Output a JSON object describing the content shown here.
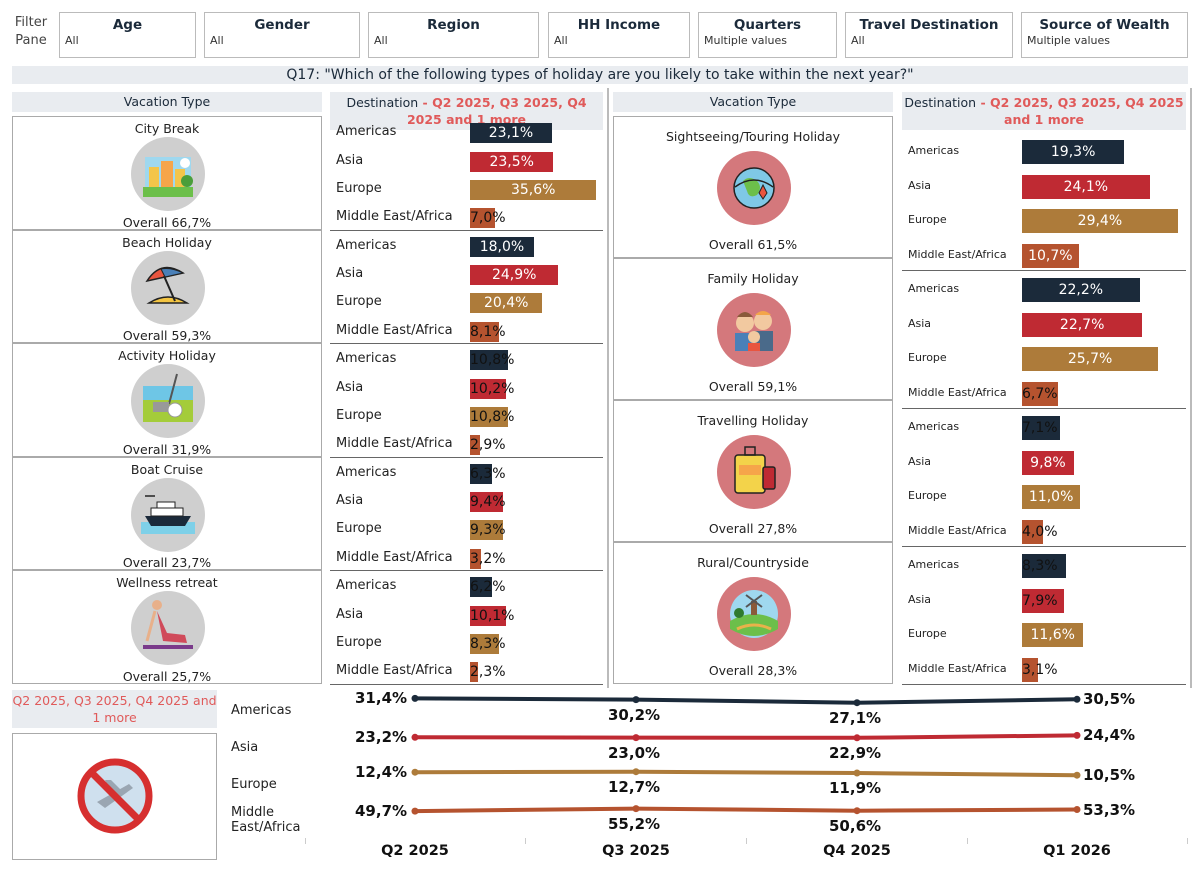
{
  "filters": {
    "pane_label": "Filter Pane",
    "items": [
      {
        "title": "Age",
        "value": "All"
      },
      {
        "title": "Gender",
        "value": "All"
      },
      {
        "title": "Region",
        "value": "All"
      },
      {
        "title": "HH Income",
        "value": "All"
      },
      {
        "title": "Quarters",
        "value": "Multiple values"
      },
      {
        "title": "Travel Destination",
        "value": "All"
      },
      {
        "title": "Source of Wealth",
        "value": "Multiple values"
      }
    ]
  },
  "question": "Q17: \"Which of the following types of holiday are you likely to take within the next year?\"",
  "headers": {
    "vacation_type": "Vacation Type",
    "destination_prefix": "Destination",
    "destination_suffix": " - Q2 2025, Q3 2025, Q4 2025 and 1 more",
    "period_label": "Q2 2025, Q3 2025, Q4 2025 and 1 more"
  },
  "colors": {
    "Americas": "#1b2a3a",
    "Asia": "#bf2a33",
    "Europe": "#ad7b3a",
    "Middle East/Africa": "#b5532f",
    "icon_grey": "#cfcfcf",
    "icon_pink": "#d4787c"
  },
  "regions": [
    "Americas",
    "Asia",
    "Europe",
    "Middle East/Africa"
  ],
  "left_types": [
    {
      "name": "City Break",
      "overall": "Overall 66,7%",
      "icon": "city-icon",
      "values": [
        23.1,
        23.5,
        35.6,
        7.0
      ],
      "labels": [
        "23,1%",
        "23,5%",
        "35,6%",
        "7,0%"
      ]
    },
    {
      "name": "Beach Holiday",
      "overall": "Overall 59,3%",
      "icon": "beach-umbrella-icon",
      "values": [
        18.0,
        24.9,
        20.4,
        8.1
      ],
      "labels": [
        "18,0%",
        "24,9%",
        "20,4%",
        "8,1%"
      ]
    },
    {
      "name": "Activity Holiday",
      "overall": "Overall 31,9%",
      "icon": "golf-icon",
      "values": [
        10.8,
        10.2,
        10.8,
        2.9
      ],
      "labels": [
        "10,8%",
        "10,2%",
        "10,8%",
        "2,9%"
      ]
    },
    {
      "name": "Boat Cruise",
      "overall": "Overall 23,7%",
      "icon": "cruise-ship-icon",
      "values": [
        6.3,
        9.4,
        9.3,
        3.2
      ],
      "labels": [
        "6,3%",
        "9,4%",
        "9,3%",
        "3,2%"
      ]
    },
    {
      "name": "Wellness retreat",
      "overall": "Overall 25,7%",
      "icon": "yoga-icon",
      "values": [
        6.2,
        10.1,
        8.3,
        2.3
      ],
      "labels": [
        "6,2%",
        "10,1%",
        "8,3%",
        "2,3%"
      ]
    }
  ],
  "right_types": [
    {
      "name": "Sightseeing/Touring Holiday",
      "overall": "Overall 61,5%",
      "icon": "globe-route-icon",
      "values": [
        19.3,
        24.1,
        29.4,
        10.7
      ],
      "labels": [
        "19,3%",
        "24,1%",
        "29,4%",
        "10,7%"
      ]
    },
    {
      "name": "Family Holiday",
      "overall": "Overall 59,1%",
      "icon": "family-icon",
      "values": [
        22.2,
        22.7,
        25.7,
        6.7
      ],
      "labels": [
        "22,2%",
        "22,7%",
        "25,7%",
        "6,7%"
      ]
    },
    {
      "name": "Travelling Holiday",
      "overall": "Overall 27,8%",
      "icon": "luggage-icon",
      "values": [
        7.1,
        9.8,
        11.0,
        4.0
      ],
      "labels": [
        "7,1%",
        "9,8%",
        "11,0%",
        "4,0%"
      ]
    },
    {
      "name": "Rural/Countryside",
      "overall": "Overall 28,3%",
      "icon": "countryside-icon",
      "values": [
        8.3,
        7.9,
        11.6,
        3.1
      ],
      "labels": [
        "8,3%",
        "7,9%",
        "11,6%",
        "3,1%"
      ]
    }
  ],
  "chart_data": {
    "type": "line",
    "title": "",
    "categories": [
      "Q2 2025",
      "Q3 2025",
      "Q4 2025",
      "Q1 2026"
    ],
    "series": [
      {
        "name": "Americas",
        "values": [
          31.4,
          30.2,
          27.1,
          30.5
        ],
        "labels": [
          "31,4%",
          "30,2%",
          "27,1%",
          "30,5%"
        ]
      },
      {
        "name": "Asia",
        "values": [
          23.2,
          23.0,
          22.9,
          24.4
        ],
        "labels": [
          "23,2%",
          "23,0%",
          "22,9%",
          "24,4%"
        ]
      },
      {
        "name": "Europe",
        "values": [
          12.4,
          12.7,
          11.9,
          10.5
        ],
        "labels": [
          "12,4%",
          "12,7%",
          "11,9%",
          "10,5%"
        ]
      },
      {
        "name": "Middle East/Africa",
        "values": [
          49.7,
          55.2,
          50.6,
          53.3
        ],
        "labels": [
          "49,7%",
          "55,2%",
          "50,6%",
          "53,3%"
        ]
      }
    ],
    "series_labels": [
      "Americas",
      "Asia",
      "Europe",
      "Middle East/Africa"
    ],
    "no_travel_icon": "no-flight-icon"
  }
}
